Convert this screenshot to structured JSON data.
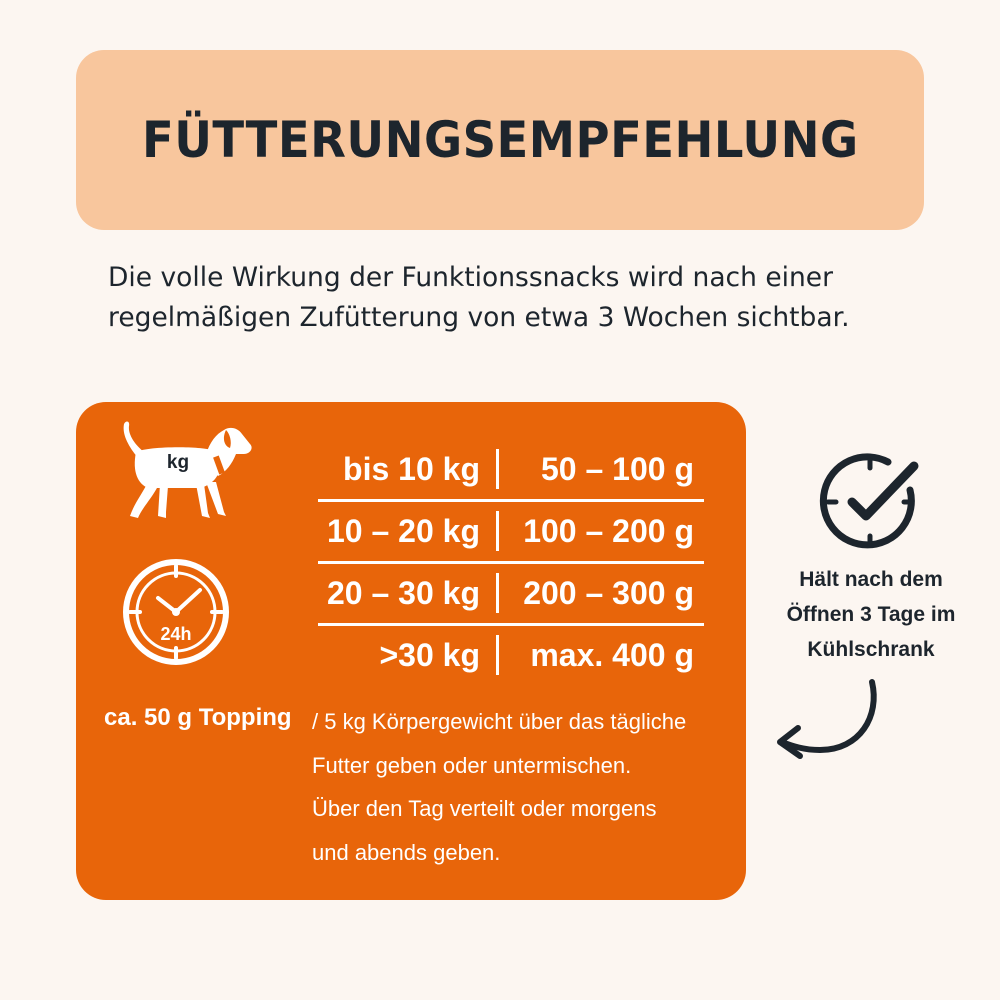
{
  "header": {
    "title": "FÜTTERUNGSEMPFEHLUNG"
  },
  "intro": {
    "lines": [
      "Die volle Wirkung der Funktionssnacks wird nach einer",
      "regelmäßigen Zufütterung von etwa 3 Wochen sichtbar."
    ]
  },
  "panel": {
    "dog_icon": {
      "icon": "dog-icon",
      "label": "kg"
    },
    "clock_icon": {
      "icon": "clock-24h-icon",
      "label": "24h"
    },
    "rows": [
      {
        "weight": "bis 10 kg",
        "amount": "50 – 100 g"
      },
      {
        "weight": "10 – 20 kg",
        "amount": "100 – 200 g"
      },
      {
        "weight": "20 – 30 kg",
        "amount": "200 – 300 g"
      },
      {
        "weight": ">30 kg",
        "amount": "max. 400 g"
      }
    ],
    "topping": {
      "lead": "ca. 50 g Topping",
      "lines": [
        "/ 5 kg Körpergewicht über das tägliche",
        "Futter geben oder untermischen.",
        "Über den Tag verteilt oder morgens",
        "und abends geben."
      ]
    }
  },
  "storage": {
    "icon": "clock-check-icon",
    "lines": [
      "Hält nach dem",
      "Öffnen 3 Tage im",
      "Kühlschrank"
    ],
    "arrow_icon": "curved-arrow-icon"
  },
  "colors": {
    "background": "#fcf6f1",
    "title_box": "#f8c69d",
    "panel": "#e8650a",
    "text_dark": "#1d252d",
    "text_light": "#ffffff"
  }
}
